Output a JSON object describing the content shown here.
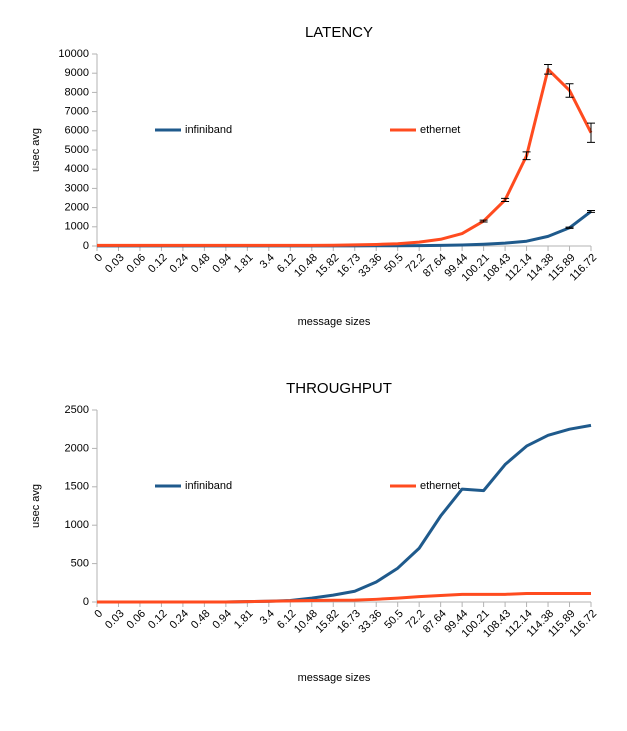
{
  "chart_data": [
    {
      "type": "line",
      "title": "LATENCY",
      "x_label": "message sizes",
      "y_label": "usec avg",
      "categories": [
        "0",
        "0.03",
        "0.06",
        "0.12",
        "0.24",
        "0.48",
        "0.94",
        "1.81",
        "3.4",
        "6.12",
        "10.48",
        "15.82",
        "16.73",
        "33.36",
        "50.5",
        "72.2",
        "87.64",
        "99.44",
        "100.21",
        "108.43",
        "112.14",
        "114.38",
        "115.89",
        "116.72"
      ],
      "series": [
        {
          "name": "infiniband",
          "color": "#1f5a8c",
          "values": [
            5,
            5,
            5,
            5,
            5,
            5,
            5,
            5,
            5,
            5,
            5,
            5,
            8,
            10,
            15,
            20,
            30,
            50,
            90,
            150,
            250,
            500,
            950,
            1800
          ],
          "errors": [
            0,
            0,
            0,
            0,
            0,
            0,
            0,
            0,
            0,
            0,
            0,
            0,
            0,
            0,
            0,
            0,
            0,
            0,
            0,
            0,
            0,
            0,
            30,
            50
          ]
        },
        {
          "name": "ethernet",
          "color": "#ff4b1f",
          "values": [
            30,
            30,
            30,
            30,
            30,
            30,
            30,
            30,
            30,
            30,
            35,
            40,
            60,
            80,
            120,
            200,
            350,
            650,
            1300,
            2400,
            4700,
            9200,
            8100,
            5900
          ],
          "errors": [
            0,
            0,
            0,
            0,
            0,
            0,
            0,
            0,
            0,
            0,
            0,
            0,
            0,
            0,
            0,
            0,
            0,
            0,
            50,
            80,
            200,
            250,
            350,
            500
          ]
        }
      ],
      "ylim": [
        0,
        10000
      ],
      "yticks": [
        0,
        1000,
        2000,
        3000,
        4000,
        5000,
        6000,
        7000,
        8000,
        9000,
        10000
      ],
      "grid": false
    },
    {
      "type": "line",
      "title": "THROUGHPUT",
      "x_label": "message sizes",
      "y_label": "usec avg",
      "categories": [
        "0",
        "0.03",
        "0.06",
        "0.12",
        "0.24",
        "0.48",
        "0.94",
        "1.81",
        "3.4",
        "6.12",
        "10.48",
        "15.82",
        "16.73",
        "33.36",
        "50.5",
        "72.2",
        "87.64",
        "99.44",
        "100.21",
        "108.43",
        "112.14",
        "114.38",
        "115.89",
        "116.72"
      ],
      "series": [
        {
          "name": "infiniband",
          "color": "#1f5a8c",
          "values": [
            0,
            0,
            0,
            0,
            0,
            0,
            0,
            5,
            10,
            20,
            50,
            90,
            140,
            260,
            440,
            700,
            1120,
            1470,
            1450,
            1790,
            2030,
            2170,
            2250,
            2300
          ]
        },
        {
          "name": "ethernet",
          "color": "#ff4b1f",
          "values": [
            0,
            0,
            0,
            0,
            0,
            0,
            0,
            5,
            10,
            15,
            20,
            22,
            25,
            35,
            50,
            70,
            85,
            100,
            100,
            100,
            110,
            110,
            110,
            110
          ]
        }
      ],
      "ylim": [
        0,
        2500
      ],
      "yticks": [
        0,
        500,
        1000,
        1500,
        2000,
        2500
      ],
      "grid": false
    }
  ]
}
